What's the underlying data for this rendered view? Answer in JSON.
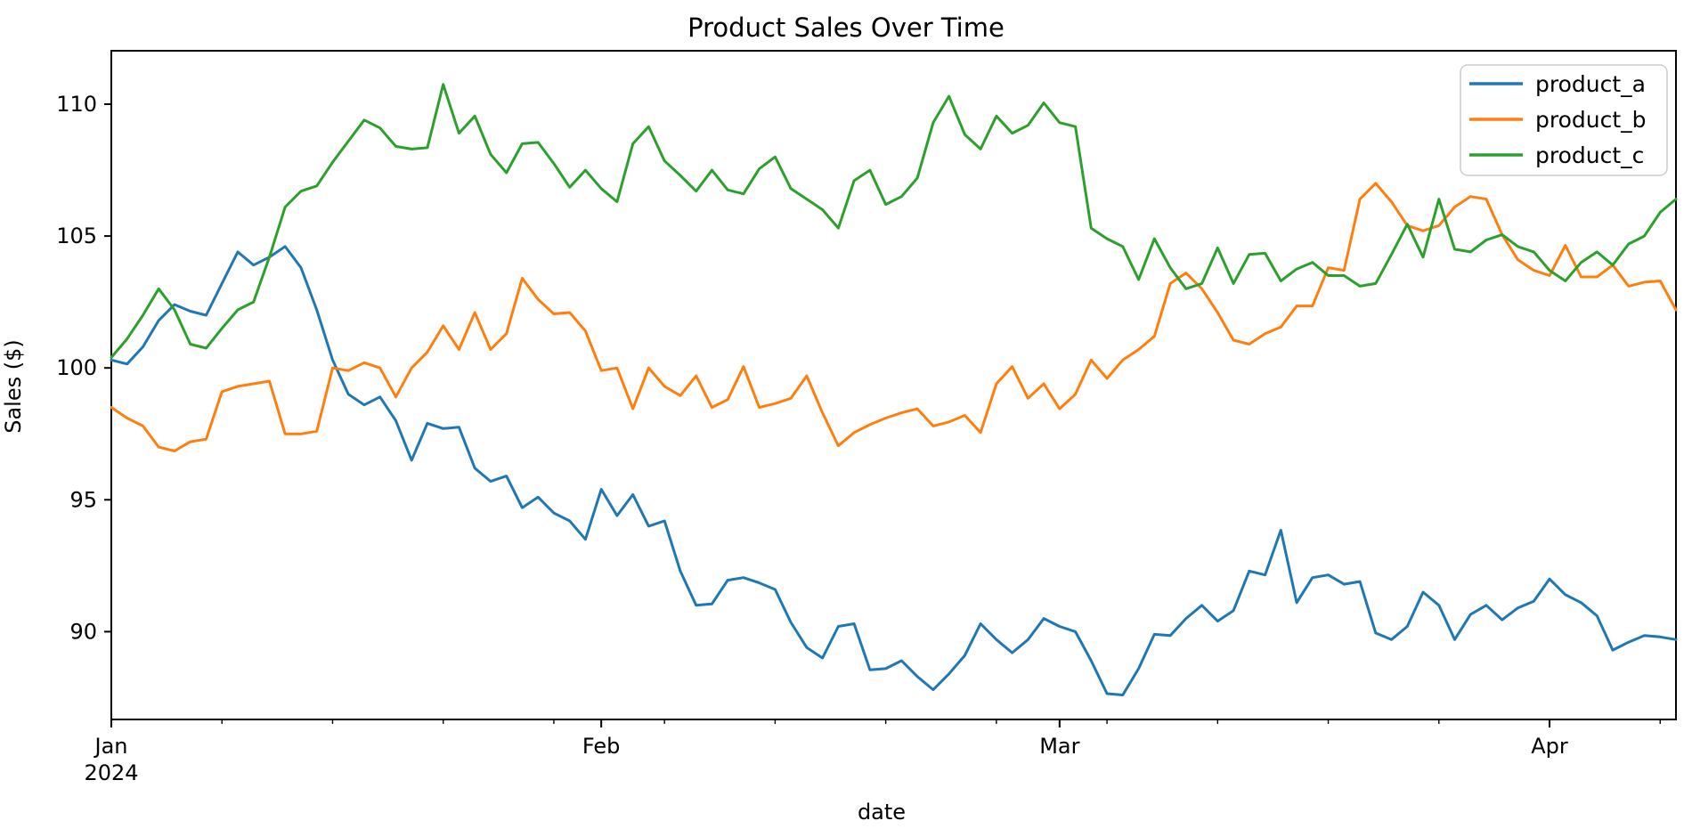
{
  "title": "Product Sales Over Time",
  "axes": {
    "xlabel": "date",
    "ylabel": "Sales ($)",
    "y_tick_values": [
      110,
      105,
      100,
      95,
      90
    ],
    "x_major_ticks": [
      {
        "label": "Jan",
        "day": 0,
        "sublabel": "2024"
      },
      {
        "label": "Feb",
        "day": 31,
        "sublabel": ""
      },
      {
        "label": "Mar",
        "day": 60,
        "sublabel": ""
      },
      {
        "label": "Apr",
        "day": 91,
        "sublabel": ""
      }
    ],
    "x_minor_tick_days": [
      7,
      14,
      21,
      28,
      35,
      42,
      49,
      56,
      63,
      70,
      77,
      84,
      98
    ],
    "text_color": "#000000",
    "axis_color": "#000000"
  },
  "legend": {
    "position": "upper right",
    "items": [
      {
        "label": "product_a",
        "color": "#1f77b4"
      },
      {
        "label": "product_b",
        "color": "#ff7f0e"
      },
      {
        "label": "product_c",
        "color": "#2ca02c"
      }
    ]
  },
  "chart_data": {
    "type": "line",
    "title": "Product Sales Over Time",
    "xlabel": "date",
    "ylabel": "Sales ($)",
    "x_axis": {
      "kind": "date",
      "start_date": "2024-01-01",
      "unit": "days since Jan 1 2024",
      "days_start": 0,
      "days_step": 1,
      "days_count": 100
    },
    "ylim": [
      86.65,
      112.05
    ],
    "xlim_days": [
      0,
      99
    ],
    "grid": false,
    "legend_position": "upper right",
    "series": [
      {
        "name": "product_a",
        "color": "#1f77b4",
        "values": [
          100.3,
          100.15,
          100.8,
          101.8,
          102.4,
          102.15,
          102.0,
          103.2,
          104.4,
          103.9,
          104.2,
          104.6,
          103.8,
          102.2,
          100.3,
          99.0,
          98.6,
          98.9,
          98.0,
          96.5,
          97.9,
          97.7,
          97.75,
          96.2,
          95.7,
          95.9,
          94.7,
          95.1,
          94.5,
          94.2,
          93.5,
          95.4,
          94.4,
          95.2,
          94.0,
          94.2,
          92.3,
          91.0,
          91.05,
          91.95,
          92.05,
          91.85,
          91.6,
          90.35,
          89.4,
          89.0,
          90.2,
          90.3,
          88.55,
          88.6,
          88.9,
          88.3,
          87.8,
          88.4,
          89.1,
          90.3,
          89.7,
          89.2,
          89.7,
          90.5,
          90.2,
          90.0,
          88.9,
          87.65,
          87.6,
          88.6,
          89.9,
          89.85,
          90.5,
          91.0,
          90.4,
          90.8,
          92.3,
          92.15,
          93.85,
          91.1,
          92.05,
          92.15,
          91.8,
          91.9,
          89.95,
          89.7,
          90.2,
          91.5,
          91.0,
          89.7,
          90.65,
          91.0,
          90.45,
          90.9,
          91.15,
          92.0,
          91.4,
          91.1,
          90.6,
          89.3,
          89.6,
          89.85,
          89.8,
          89.7
        ]
      },
      {
        "name": "product_b",
        "color": "#ff7f0e",
        "values": [
          98.5,
          98.1,
          97.8,
          97.0,
          96.85,
          97.2,
          97.3,
          99.1,
          99.3,
          99.4,
          99.5,
          97.5,
          97.5,
          97.6,
          100.0,
          99.9,
          100.2,
          100.0,
          98.9,
          100.0,
          100.6,
          101.6,
          100.7,
          102.1,
          100.7,
          101.3,
          103.4,
          102.6,
          102.05,
          102.1,
          101.4,
          99.9,
          100.0,
          98.45,
          100.0,
          99.3,
          98.95,
          99.7,
          98.5,
          98.8,
          100.05,
          98.5,
          98.65,
          98.85,
          99.7,
          98.3,
          97.05,
          97.55,
          97.85,
          98.1,
          98.3,
          98.45,
          97.8,
          97.95,
          98.2,
          97.55,
          99.4,
          100.05,
          98.85,
          99.4,
          98.45,
          99.0,
          100.3,
          99.6,
          100.3,
          100.7,
          101.2,
          103.2,
          103.6,
          103.0,
          102.1,
          101.05,
          100.9,
          101.3,
          101.55,
          102.35,
          102.35,
          103.8,
          103.7,
          106.4,
          107.0,
          106.3,
          105.4,
          105.2,
          105.4,
          106.1,
          106.5,
          106.4,
          105.05,
          104.1,
          103.7,
          103.5,
          104.65,
          103.45,
          103.45,
          103.9,
          103.1,
          103.25,
          103.3,
          102.2
        ]
      },
      {
        "name": "product_c",
        "color": "#2ca02c",
        "values": [
          100.4,
          101.1,
          102.0,
          103.0,
          102.2,
          100.9,
          100.75,
          101.5,
          102.2,
          102.5,
          104.2,
          106.1,
          106.7,
          106.9,
          107.8,
          108.6,
          109.4,
          109.1,
          108.4,
          108.3,
          108.35,
          110.75,
          108.9,
          109.55,
          108.1,
          107.4,
          108.5,
          108.55,
          107.75,
          106.85,
          107.5,
          106.8,
          106.3,
          108.5,
          109.15,
          107.85,
          107.3,
          106.7,
          107.5,
          106.75,
          106.6,
          107.55,
          108.0,
          106.8,
          106.4,
          106.0,
          105.3,
          107.1,
          107.5,
          106.2,
          106.5,
          107.2,
          109.3,
          110.3,
          108.85,
          108.3,
          109.55,
          108.9,
          109.2,
          110.05,
          109.3,
          109.15,
          105.3,
          104.9,
          104.6,
          103.35,
          104.9,
          103.8,
          103.0,
          103.2,
          104.55,
          103.2,
          104.3,
          104.35,
          103.3,
          103.75,
          104.0,
          103.5,
          103.5,
          103.1,
          103.2,
          104.3,
          105.45,
          104.2,
          106.4,
          104.5,
          104.4,
          104.85,
          105.05,
          104.6,
          104.4,
          103.7,
          103.3,
          104.0,
          104.4,
          103.9,
          104.7,
          105.0,
          105.9,
          106.4
        ]
      }
    ]
  }
}
